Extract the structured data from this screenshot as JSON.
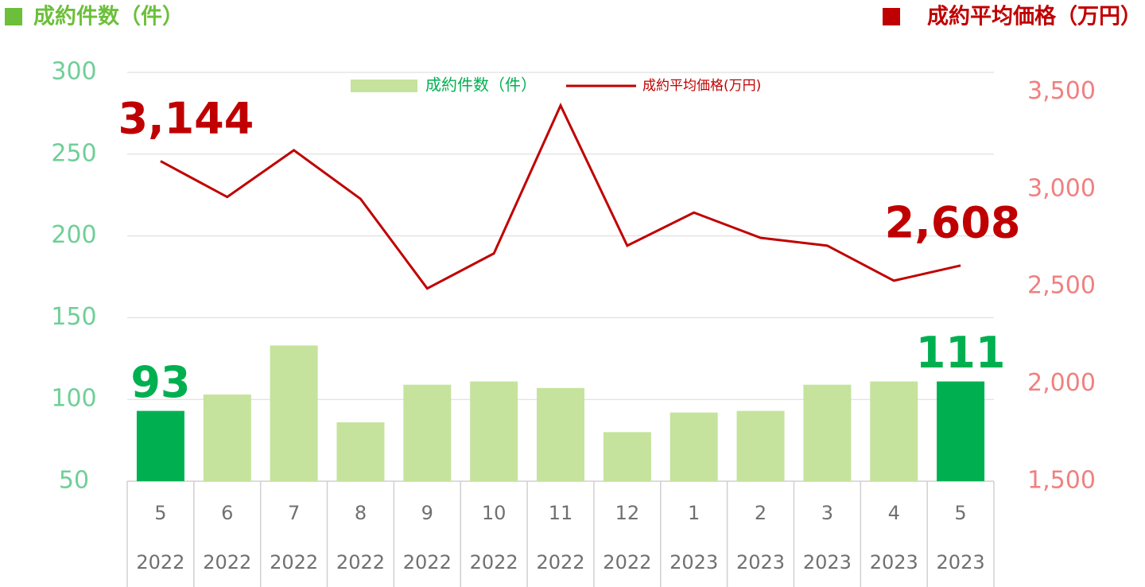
{
  "chart_data": {
    "type": "bar-line",
    "left_header": "成約件数（件）",
    "left_header_color": "#6cbf3a",
    "right_header": "成約平均価格（万円）",
    "right_header_color": "#c00000",
    "categories": [
      "5",
      "6",
      "7",
      "8",
      "9",
      "10",
      "11",
      "12",
      "1",
      "2",
      "3",
      "4",
      "5"
    ],
    "category_years": [
      "2022",
      "2022",
      "2022",
      "2022",
      "2022",
      "2022",
      "2022",
      "2022",
      "2023",
      "2023",
      "2023",
      "2023",
      "2023"
    ],
    "series": [
      {
        "name": "成約件数（件）",
        "type": "bar",
        "color": "#c5e39c",
        "highlight_color": "#00b050",
        "values": [
          93,
          103,
          133,
          86,
          109,
          111,
          107,
          80,
          92,
          93,
          109,
          111,
          111
        ],
        "value_labels": [
          "93",
          null,
          null,
          null,
          null,
          null,
          null,
          null,
          null,
          null,
          null,
          null,
          "111"
        ]
      },
      {
        "name": "成約平均価格(万円)",
        "type": "line",
        "axis": "y2",
        "color": "#c00000",
        "values": [
          3144,
          2960,
          3200,
          2950,
          2490,
          2670,
          3430,
          2710,
          2880,
          2750,
          2710,
          2530,
          2608
        ],
        "value_labels": [
          "3,144",
          null,
          null,
          null,
          null,
          null,
          null,
          null,
          null,
          null,
          null,
          null,
          "2,608"
        ]
      }
    ],
    "ylim": [
      50,
      300
    ],
    "yticks": [
      50,
      100,
      150,
      200,
      250,
      300
    ],
    "y2lim": [
      1500,
      3600
    ],
    "y2ticks": [
      {
        "value": 1500,
        "label": "1,500"
      },
      {
        "value": 2000,
        "label": "2,000"
      },
      {
        "value": 2500,
        "label": "2,500"
      },
      {
        "value": 3000,
        "label": "3,000"
      },
      {
        "value": 3500,
        "label": "3,500"
      }
    ],
    "grid": true
  }
}
